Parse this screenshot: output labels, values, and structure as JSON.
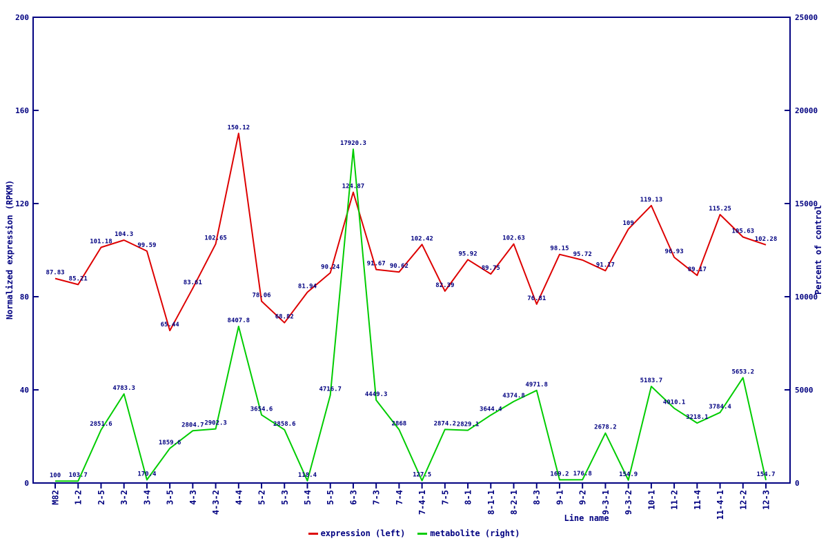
{
  "chart_data": {
    "type": "line",
    "title": "",
    "xlabel": "Line name",
    "ylabel_left": "Normalized expression (RPKM)",
    "ylabel_right": "Percent of control",
    "legend_position": "bottom",
    "grid": false,
    "show_data_labels": true,
    "categories": [
      "M82",
      "1-2",
      "2-5",
      "3-2",
      "3-4",
      "3-5",
      "4-3",
      "4-3-2",
      "4-4",
      "5-2",
      "5-3",
      "5-4",
      "5-5",
      "6-3",
      "7-3",
      "7-4",
      "7-4-1",
      "7-5",
      "8-1",
      "8-1-1",
      "8-2-1",
      "8-3",
      "9-1",
      "9-2",
      "9-3-1",
      "9-3-2",
      "10-1",
      "11-2",
      "11-4",
      "11-4-1",
      "12-2",
      "12-3"
    ],
    "series": [
      {
        "name": "expression (left)",
        "axis": "left",
        "color": "#dd0000",
        "values": [
          87.83,
          85.21,
          101.18,
          104.3,
          99.59,
          65.44,
          83.61,
          102.65,
          150.12,
          78.06,
          68.82,
          81.94,
          90.24,
          124.87,
          91.67,
          90.62,
          102.42,
          82.39,
          95.92,
          89.75,
          102.63,
          76.81,
          98.15,
          95.72,
          91.17,
          109,
          119.13,
          96.93,
          89.17,
          115.25,
          105.63,
          102.28
        ]
      },
      {
        "name": "metabolite (right)",
        "axis": "right",
        "color": "#00cc00",
        "values": [
          100,
          103.7,
          2851.6,
          4783.3,
          170.4,
          1859.6,
          2804.7,
          2902.3,
          8407.8,
          3654.6,
          2858.6,
          118.4,
          4716.7,
          17920.3,
          4449.3,
          2868,
          127.5,
          2874.2,
          2829.1,
          3644.4,
          4374.8,
          4971.8,
          169.2,
          176.8,
          2678.2,
          154.9,
          5183.7,
          4010.1,
          3218.1,
          3784.4,
          5653.2,
          154.7
        ]
      }
    ],
    "left_axis": {
      "min": 0,
      "max": 200,
      "ticks": [
        0,
        40,
        80,
        120,
        160,
        200
      ]
    },
    "right_axis": {
      "min": 0,
      "max": 25000,
      "ticks": [
        0,
        5000,
        10000,
        15000,
        20000,
        25000
      ]
    },
    "colors": {
      "axis": "#000080",
      "text": "#000080",
      "background": "#ffffff"
    }
  }
}
